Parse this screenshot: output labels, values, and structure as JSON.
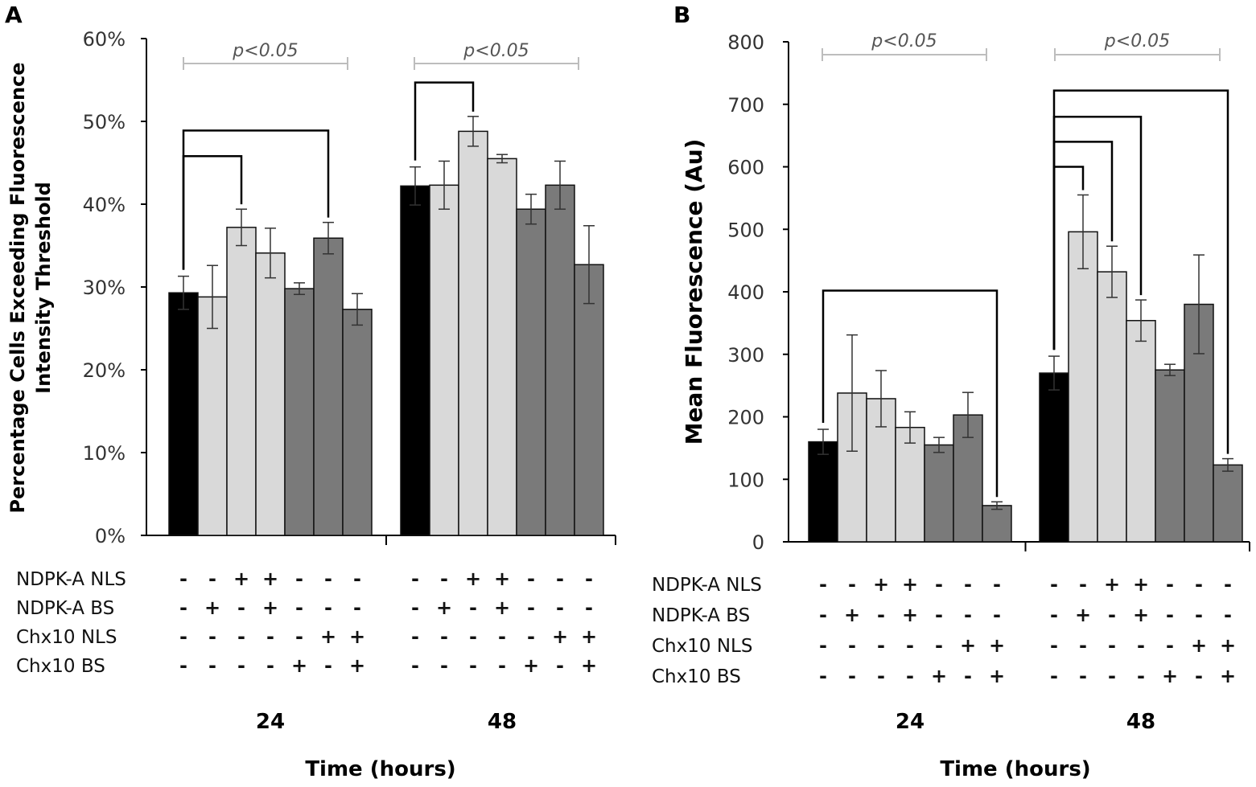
{
  "figure_labels": [
    "A",
    "B"
  ],
  "conditions": {
    "row_labels": [
      "NDPK-A NLS",
      "NDPK-A BS",
      "Chx10 NLS",
      "Chx10 BS"
    ],
    "matrix": [
      [
        "-",
        "-",
        "+",
        "+",
        "-",
        "-",
        "-"
      ],
      [
        "-",
        "+",
        "-",
        "+",
        "-",
        "-",
        "-"
      ],
      [
        "-",
        "-",
        "-",
        "-",
        "-",
        "+",
        "+"
      ],
      [
        "-",
        "-",
        "-",
        "-",
        "+",
        "-",
        "+"
      ]
    ]
  },
  "colors": {
    "control": "#000000",
    "ndpk": "#d9d9d9",
    "chx10": "#7a7a7a",
    "bar_edge": "#111111",
    "sig_line": "#bdbdbd",
    "error": "#333333"
  },
  "chart_data": [
    {
      "panel": "A",
      "type": "bar",
      "ylabel_lines": [
        "Percentage Cells Exceeding Fluorescence",
        "Intensity  Threshold"
      ],
      "xlabel": "Time (hours)",
      "categories": [
        "24",
        "48"
      ],
      "y_tick_labels": [
        "0%",
        "10%",
        "20%",
        "30%",
        "40%",
        "50%",
        "60%"
      ],
      "ylim": [
        0,
        60
      ],
      "bar_colors": [
        "control",
        "ndpk",
        "ndpk",
        "ndpk",
        "chx10",
        "chx10",
        "chx10"
      ],
      "series_values": [
        [
          29.3,
          28.8,
          37.2,
          34.1,
          29.8,
          35.9,
          27.3
        ],
        [
          42.2,
          42.3,
          48.8,
          45.5,
          39.4,
          42.3,
          32.7
        ]
      ],
      "series_errors": [
        [
          2.0,
          3.8,
          2.2,
          3.0,
          0.7,
          1.9,
          1.9
        ],
        [
          2.3,
          2.9,
          1.8,
          0.5,
          1.8,
          2.9,
          4.7
        ]
      ],
      "significance_label": "p<0.05",
      "significance_brackets": [
        {
          "group": 0,
          "from": 0,
          "to": 2,
          "level": 45.8
        },
        {
          "group": 0,
          "from": 0,
          "to": 5,
          "level": 48.9
        },
        {
          "group": 1,
          "from": 0,
          "to": 2,
          "level": 54.7
        }
      ]
    },
    {
      "panel": "B",
      "type": "bar",
      "ylabel": "Mean Fluorescence (Au)",
      "xlabel": "Time (hours)",
      "categories": [
        "24",
        "48"
      ],
      "y_tick_labels": [
        "0",
        "100",
        "200",
        "300",
        "400",
        "500",
        "600",
        "700",
        "800"
      ],
      "ylim": [
        0,
        800
      ],
      "bar_colors": [
        "control",
        "ndpk",
        "ndpk",
        "ndpk",
        "chx10",
        "chx10",
        "chx10"
      ],
      "series_values": [
        [
          160,
          238,
          229,
          183,
          155,
          203,
          58
        ],
        [
          270,
          496,
          432,
          354,
          275,
          380,
          123
        ]
      ],
      "series_errors": [
        [
          20,
          93,
          45,
          25,
          12,
          36,
          6
        ],
        [
          27,
          59,
          41,
          33,
          9,
          79,
          10
        ]
      ],
      "significance_label": "p<0.05",
      "significance_brackets": [
        {
          "group": 0,
          "from": 0,
          "to": 6,
          "level": 402
        },
        {
          "group": 1,
          "from": 0,
          "to": 1,
          "level": 600
        },
        {
          "group": 1,
          "from": 0,
          "to": 2,
          "level": 640
        },
        {
          "group": 1,
          "from": 0,
          "to": 3,
          "level": 680
        },
        {
          "group": 1,
          "from": 0,
          "to": 6,
          "level": 722
        }
      ]
    }
  ]
}
